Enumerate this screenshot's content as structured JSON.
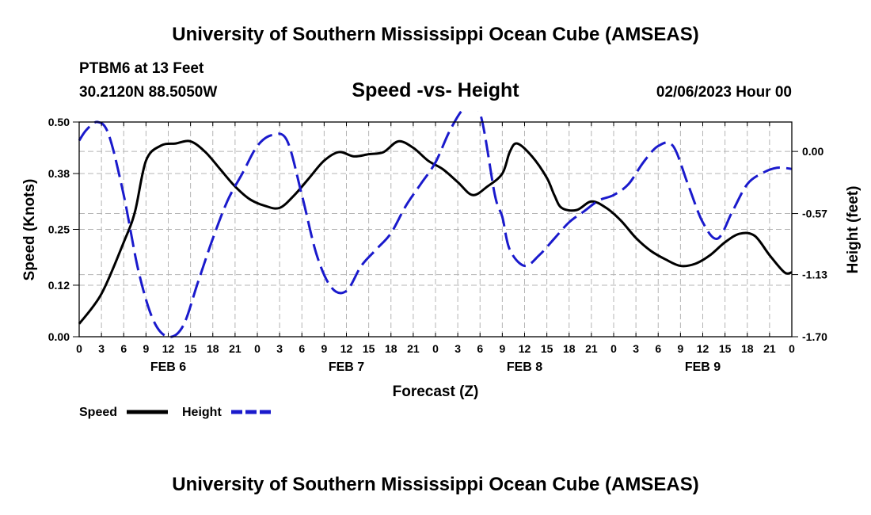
{
  "header": {
    "title": "University of Southern Mississippi Ocean Cube (AMSEAS)",
    "station": "PTBM6 at 13 Feet",
    "coords": "30.2120N  88.5050W",
    "subtitle": "Speed -vs- Height",
    "date": "02/06/2023 Hour 00"
  },
  "footer": {
    "title": "University of Southern Mississippi Ocean Cube (AMSEAS)"
  },
  "legend": {
    "speed_label": "Speed",
    "height_label": "Height"
  },
  "colors": {
    "speed": "#000000",
    "height": "#1a1acc",
    "grid": "#b4b4b4"
  },
  "chart_data": {
    "type": "line",
    "xlabel": "Forecast (Z)",
    "ylabel_left": "Speed (Knots)",
    "ylabel_right": "Height (feet)",
    "x_unit": "hours since 02/06/2023 00Z",
    "xlim": [
      0,
      96
    ],
    "x_tick_step": 3,
    "x_tick_labels": [
      "0",
      "3",
      "6",
      "9",
      "12",
      "15",
      "18",
      "21",
      "0",
      "3",
      "6",
      "9",
      "12",
      "15",
      "18",
      "21",
      "0",
      "3",
      "6",
      "9",
      "12",
      "15",
      "18",
      "21",
      "0",
      "3",
      "6",
      "9",
      "12",
      "15",
      "18",
      "21",
      "0"
    ],
    "day_labels": [
      {
        "label": "FEB 6",
        "x": 12
      },
      {
        "label": "FEB 7",
        "x": 36
      },
      {
        "label": "FEB 8",
        "x": 60
      },
      {
        "label": "FEB 9",
        "x": 84
      }
    ],
    "ylim_left": [
      0,
      0.5
    ],
    "y_ticks_left": [
      0.0,
      0.12,
      0.25,
      0.38,
      0.5
    ],
    "y_tick_labels_left": [
      "0.00",
      "0.12",
      "0.25",
      "0.38",
      "0.50"
    ],
    "ylim_right": [
      -1.7,
      0.27
    ],
    "y_ticks_right": [
      -1.7,
      -1.13,
      -0.57,
      0.0
    ],
    "y_tick_labels_right": [
      "-1.70",
      "-1.13",
      "-0.57",
      "0.00"
    ],
    "grid": true,
    "series": [
      {
        "name": "Speed",
        "axis": "left",
        "style": "solid",
        "x": [
          0,
          3,
          6,
          7.5,
          9,
          11,
          13,
          15,
          17,
          19,
          21,
          23,
          25,
          27,
          29,
          31,
          33,
          35,
          37,
          39,
          41,
          43,
          45,
          47,
          49,
          51,
          53,
          55,
          57,
          58,
          59,
          61,
          63,
          64,
          65,
          67,
          69,
          71,
          73,
          75,
          77,
          79,
          81,
          83,
          85,
          87,
          89,
          91,
          93,
          95,
          96
        ],
        "y": [
          0.03,
          0.1,
          0.22,
          0.29,
          0.41,
          0.445,
          0.45,
          0.455,
          0.43,
          0.39,
          0.35,
          0.32,
          0.305,
          0.3,
          0.33,
          0.37,
          0.41,
          0.43,
          0.42,
          0.425,
          0.43,
          0.455,
          0.44,
          0.41,
          0.39,
          0.36,
          0.33,
          0.35,
          0.38,
          0.43,
          0.45,
          0.42,
          0.37,
          0.33,
          0.3,
          0.295,
          0.315,
          0.3,
          0.27,
          0.23,
          0.2,
          0.18,
          0.165,
          0.17,
          0.19,
          0.22,
          0.24,
          0.235,
          0.19,
          0.15,
          0.15
        ]
      },
      {
        "name": "Height",
        "axis": "right",
        "style": "dashed",
        "x": [
          0,
          1,
          2.5,
          4,
          6,
          8,
          10,
          12,
          14,
          16,
          18,
          20,
          22,
          24,
          26,
          28,
          30,
          32,
          34,
          36,
          38,
          40,
          42,
          44,
          46,
          48,
          50,
          52,
          54,
          56,
          57,
          58,
          60,
          62,
          64,
          66,
          68,
          70,
          72,
          74,
          76,
          78,
          80,
          82,
          84,
          86,
          88,
          90,
          92,
          94,
          96
        ],
        "y": [
          0.1,
          0.2,
          0.27,
          0.15,
          -0.4,
          -1.1,
          -1.55,
          -1.7,
          -1.6,
          -1.2,
          -0.8,
          -0.45,
          -0.2,
          0.05,
          0.15,
          0.1,
          -0.4,
          -0.95,
          -1.25,
          -1.28,
          -1.05,
          -0.9,
          -0.75,
          -0.5,
          -0.3,
          -0.1,
          0.2,
          0.4,
          0.35,
          -0.4,
          -0.6,
          -0.9,
          -1.05,
          -0.95,
          -0.8,
          -0.65,
          -0.55,
          -0.45,
          -0.4,
          -0.3,
          -0.1,
          0.05,
          0.05,
          -0.3,
          -0.65,
          -0.8,
          -0.55,
          -0.3,
          -0.2,
          -0.15,
          -0.16
        ]
      }
    ]
  }
}
